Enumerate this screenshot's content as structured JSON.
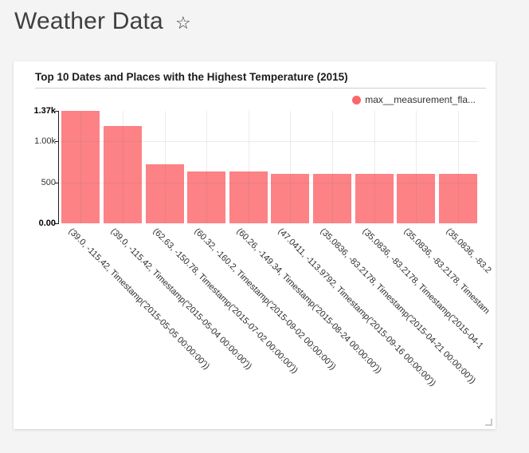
{
  "page": {
    "title": "Weather Data",
    "star_icon": "☆",
    "background_color": "#f4f4f4"
  },
  "card": {
    "title": "Top 10 Dates and Places with the Highest Temperature (2015)",
    "legend": {
      "label": "max__measurement_fla...",
      "marker_color": "#fb666b"
    }
  },
  "chart_data": {
    "type": "bar",
    "title": "Top 10 Dates and Places with the Highest Temperature (2015)",
    "series": [
      {
        "name": "max__measurement_fla...",
        "values": [
          1370,
          1190,
          715,
          636,
          628,
          605,
          601,
          600,
          599,
          598
        ]
      }
    ],
    "categories": [
      "(39.0, -115.42, Timestamp('2015-05-05 00:00:00'))",
      "(39.0, -115.42, Timestamp('2015-05-04 00:00:00'))",
      "(62.63, -150.78, Timestamp('2015-07-02 00:00:00'))",
      "(60.32, -160.2, Timestamp('2015-09-02 00:00:00'))",
      "(60.26, -149.34, Timestamp('2015-08-24 00:00:00'))",
      "(47.0411, -113.9792, Timestamp('2015-09-16 00:00:00'))",
      "(35.0836, -83.2178, Timestamp('2015-04-21 00:00:00'))",
      "(35.0836, -83.2178, Timestamp('2015-04-1",
      "(35.0836, -83.2178, Timestam",
      "(35.0836, -83.2"
    ],
    "xlabel": "",
    "ylabel": "",
    "ylim": [
      0,
      1370
    ],
    "yticks": [
      {
        "value": 0,
        "label": "0.00",
        "bold": true
      },
      {
        "value": 500,
        "label": "500",
        "bold": false
      },
      {
        "value": 1000,
        "label": "1.00k",
        "bold": false
      },
      {
        "value": 1370,
        "label": "1.37k",
        "bold": true
      }
    ],
    "grid": {
      "horizontal_values": [
        500,
        1000
      ],
      "vertical_at_bar_centers": true
    },
    "bar_color": "#fb666b",
    "bar_opacity": 0.82,
    "x_label_rotation_deg": 45,
    "legend_position": "top-right"
  }
}
